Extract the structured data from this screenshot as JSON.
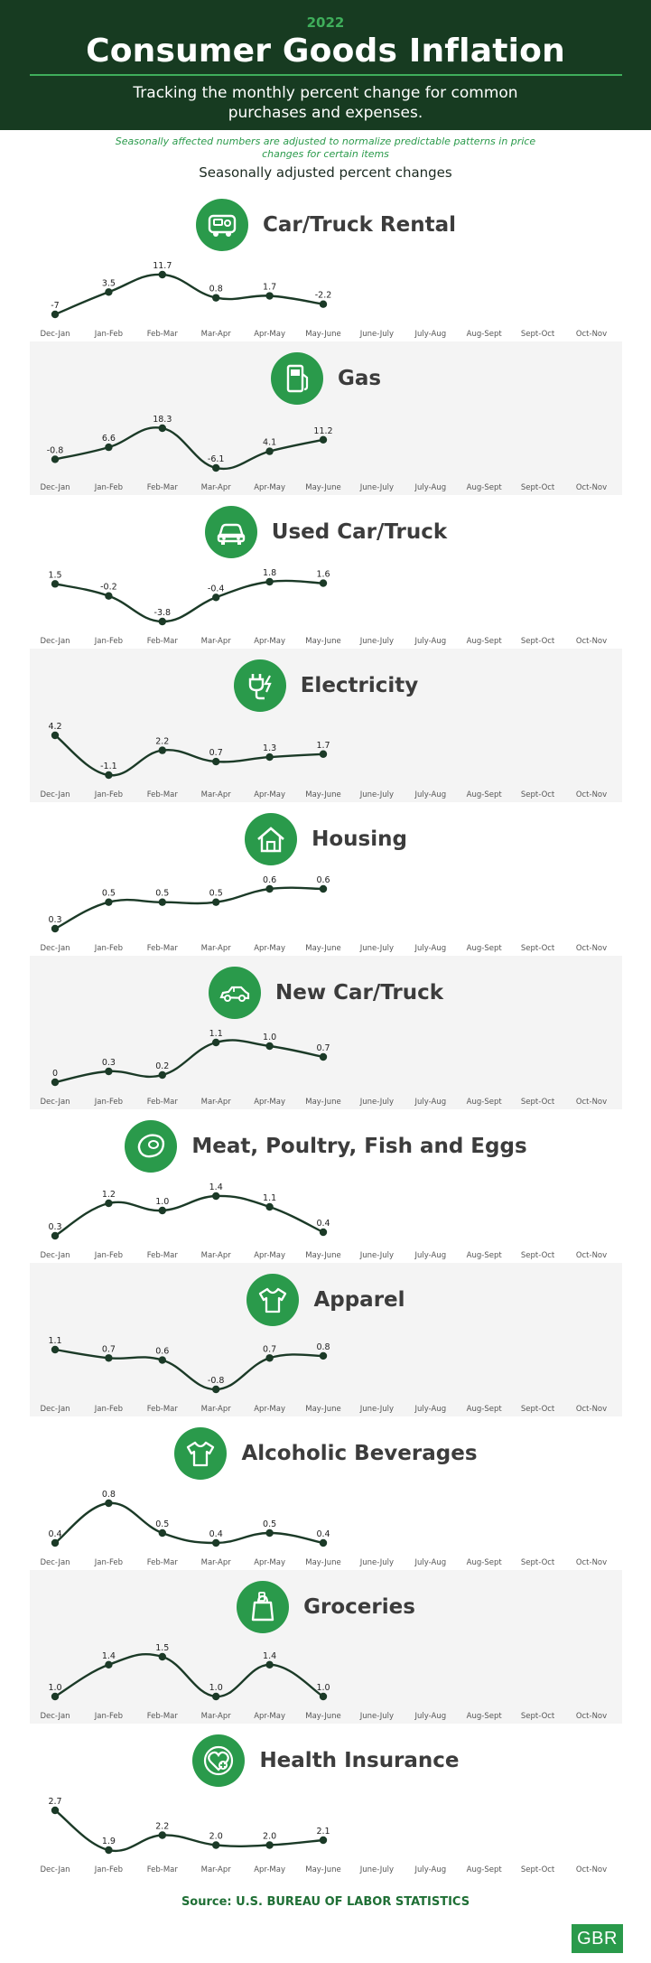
{
  "header": {
    "year": "2022",
    "title": "Consumer Goods Inflation",
    "subtitle": "Tracking the monthly percent change for common purchases and expenses."
  },
  "note": "Seasonally affected numbers are adjusted to normalize predictable patterns in price changes for certain items",
  "adjusted_label": "Seasonally adjusted percent changes",
  "source": "Source: U.S. BUREAU OF LABOR STATISTICS",
  "logo": "GBR",
  "colors": {
    "header_bg": "#173b21",
    "accent": "#2a9a4b",
    "line": "#1b3a27",
    "panel_shade": "#f4f4f4"
  },
  "chart_data": [
    {
      "type": "line",
      "title": "Car/Truck Rental",
      "icon": "car-rental-icon",
      "categories": [
        "Dec-Jan",
        "Jan-Feb",
        "Feb-Mar",
        "Mar-Apr",
        "Apr-May",
        "May-June",
        "June-July",
        "July-Aug",
        "Aug-Sept",
        "Sept-Oct",
        "Oct-Nov"
      ],
      "values": [
        -7,
        3.5,
        11.7,
        0.8,
        1.7,
        -2.2
      ],
      "labels": [
        "-7",
        "3.5",
        "11.7",
        "0.8",
        "1.7",
        "-2.2"
      ]
    },
    {
      "type": "line",
      "title": "Gas",
      "icon": "gas-pump-icon",
      "categories": [
        "Dec-Jan",
        "Jan-Feb",
        "Feb-Mar",
        "Mar-Apr",
        "Apr-May",
        "May-June",
        "June-July",
        "July-Aug",
        "Aug-Sept",
        "Sept-Oct",
        "Oct-Nov"
      ],
      "values": [
        -0.8,
        6.6,
        18.3,
        -6.1,
        4.1,
        11.2
      ],
      "labels": [
        "-0.8",
        "6.6",
        "18.3",
        "-6.1",
        "4.1",
        "11.2"
      ]
    },
    {
      "type": "line",
      "title": "Used Car/Truck",
      "icon": "used-car-icon",
      "categories": [
        "Dec-Jan",
        "Jan-Feb",
        "Feb-Mar",
        "Mar-Apr",
        "Apr-May",
        "May-June",
        "June-July",
        "July-Aug",
        "Aug-Sept",
        "Sept-Oct",
        "Oct-Nov"
      ],
      "values": [
        1.5,
        -0.2,
        -3.8,
        -0.4,
        1.8,
        1.6
      ],
      "labels": [
        "1.5",
        "-0.2",
        "-3.8",
        "-0.4",
        "1.8",
        "1.6"
      ]
    },
    {
      "type": "line",
      "title": "Electricity",
      "icon": "plug-icon",
      "categories": [
        "Dec-Jan",
        "Jan-Feb",
        "Feb-Mar",
        "Mar-Apr",
        "Apr-May",
        "May-June",
        "June-July",
        "July-Aug",
        "Aug-Sept",
        "Sept-Oct",
        "Oct-Nov"
      ],
      "values": [
        4.2,
        -1.1,
        2.2,
        0.7,
        1.3,
        1.7
      ],
      "labels": [
        "4.2",
        "-1.1",
        "2.2",
        "0.7",
        "1.3",
        "1.7"
      ]
    },
    {
      "type": "line",
      "title": "Housing",
      "icon": "house-icon",
      "categories": [
        "Dec-Jan",
        "Jan-Feb",
        "Feb-Mar",
        "Mar-Apr",
        "Apr-May",
        "May-June",
        "June-July",
        "July-Aug",
        "Aug-Sept",
        "Sept-Oct",
        "Oct-Nov"
      ],
      "values": [
        0.3,
        0.5,
        0.5,
        0.5,
        0.6,
        0.6
      ],
      "labels": [
        "0.3",
        "0.5",
        "0.5",
        "0.5",
        "0.6",
        "0.6"
      ]
    },
    {
      "type": "line",
      "title": "New Car/Truck",
      "icon": "new-car-icon",
      "categories": [
        "Dec-Jan",
        "Jan-Feb",
        "Feb-Mar",
        "Mar-Apr",
        "Apr-May",
        "May-June",
        "June-July",
        "July-Aug",
        "Aug-Sept",
        "Sept-Oct",
        "Oct-Nov"
      ],
      "values": [
        0,
        0.3,
        0.2,
        1.1,
        1.0,
        0.7
      ],
      "labels": [
        "0",
        "0.3",
        "0.2",
        "1.1",
        "1.0",
        "0.7"
      ]
    },
    {
      "type": "line",
      "title": "Meat, Poultry, Fish and Eggs",
      "icon": "steak-icon",
      "categories": [
        "Dec-Jan",
        "Jan-Feb",
        "Feb-Mar",
        "Mar-Apr",
        "Apr-May",
        "May-June",
        "June-July",
        "July-Aug",
        "Aug-Sept",
        "Sept-Oct",
        "Oct-Nov"
      ],
      "values": [
        0.3,
        1.2,
        1.0,
        1.4,
        1.1,
        0.4
      ],
      "labels": [
        "0.3",
        "1.2",
        "1.0",
        "1.4",
        "1.1",
        "0.4"
      ]
    },
    {
      "type": "line",
      "title": "Apparel",
      "icon": "shirt-icon",
      "categories": [
        "Dec-Jan",
        "Jan-Feb",
        "Feb-Mar",
        "Mar-Apr",
        "Apr-May",
        "May-June",
        "June-July",
        "July-Aug",
        "Aug-Sept",
        "Sept-Oct",
        "Oct-Nov"
      ],
      "values": [
        1.1,
        0.7,
        0.6,
        -0.8,
        0.7,
        0.8
      ],
      "labels": [
        "1.1",
        "0.7",
        "0.6",
        "-0.8",
        "0.7",
        "0.8"
      ]
    },
    {
      "type": "line",
      "title": "Alcoholic Beverages",
      "icon": "shirt-icon",
      "categories": [
        "Dec-Jan",
        "Jan-Feb",
        "Feb-Mar",
        "Mar-Apr",
        "Apr-May",
        "May-June",
        "June-July",
        "July-Aug",
        "Aug-Sept",
        "Sept-Oct",
        "Oct-Nov"
      ],
      "values": [
        0.4,
        0.8,
        0.5,
        0.4,
        0.5,
        0.4
      ],
      "labels": [
        "0.4",
        "0.8",
        "0.5",
        "0.4",
        "0.5",
        "0.4"
      ]
    },
    {
      "type": "line",
      "title": "Groceries",
      "icon": "grocery-bag-icon",
      "categories": [
        "Dec-Jan",
        "Jan-Feb",
        "Feb-Mar",
        "Mar-Apr",
        "Apr-May",
        "May-June",
        "June-July",
        "July-Aug",
        "Aug-Sept",
        "Sept-Oct",
        "Oct-Nov"
      ],
      "values": [
        1.0,
        1.4,
        1.5,
        1.0,
        1.4,
        1.0
      ],
      "labels": [
        "1.0",
        "1.4",
        "1.5",
        "1.0",
        "1.4",
        "1.0"
      ]
    },
    {
      "type": "line",
      "title": "Health Insurance",
      "icon": "heart-health-icon",
      "categories": [
        "Dec-Jan",
        "Jan-Feb",
        "Feb-Mar",
        "Mar-Apr",
        "Apr-May",
        "May-June",
        "June-July",
        "July-Aug",
        "Aug-Sept",
        "Sept-Oct",
        "Oct-Nov"
      ],
      "values": [
        2.7,
        1.9,
        2.2,
        2.0,
        2.0,
        2.1
      ],
      "labels": [
        "2.7",
        "1.9",
        "2.2",
        "2.0",
        "2.0",
        "2.1"
      ]
    }
  ]
}
